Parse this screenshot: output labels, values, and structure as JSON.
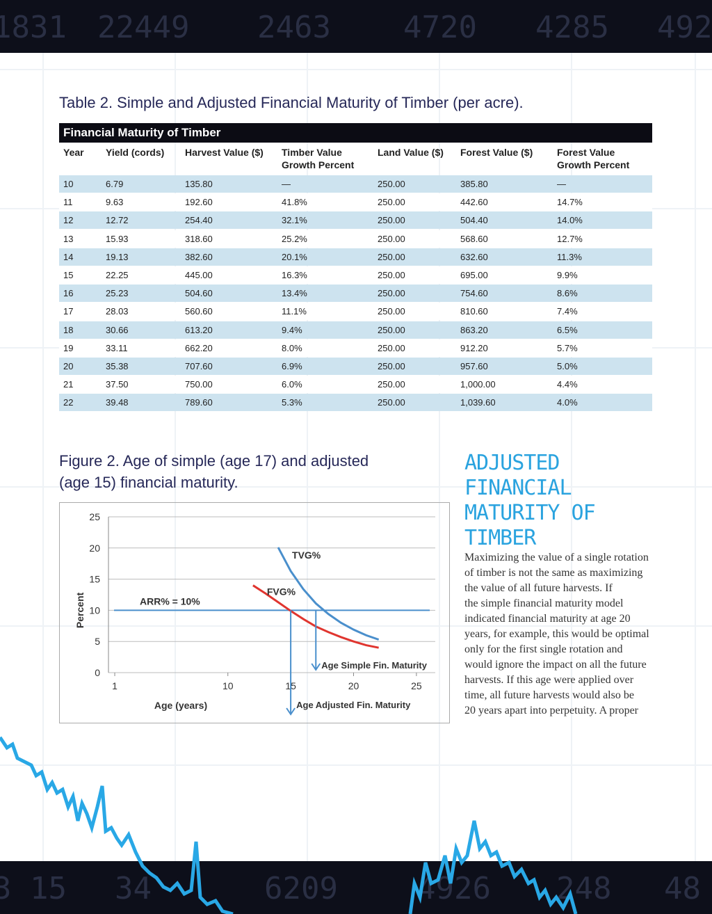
{
  "banner": {
    "top": [
      "1831",
      "22449",
      "2463",
      "4720",
      "4285",
      "492"
    ],
    "bottom": [
      "3 15",
      "34",
      "6209",
      "4926",
      "248",
      "48"
    ]
  },
  "table": {
    "title": "Table 2. Simple and Adjusted Financial Maturity of Timber (per acre).",
    "caption": "Financial Maturity of Timber",
    "columns": [
      "Year",
      "Yield (cords)",
      "Harvest Value ($)",
      "Timber Value Growth Percent",
      "Land Value ($)",
      "Forest Value ($)",
      "Forest Value Growth Percent"
    ],
    "rows": [
      [
        "10",
        "6.79",
        "135.80",
        "—",
        "250.00",
        "385.80",
        "—"
      ],
      [
        "11",
        "9.63",
        "192.60",
        "41.8%",
        "250.00",
        "442.60",
        "14.7%"
      ],
      [
        "12",
        "12.72",
        "254.40",
        "32.1%",
        "250.00",
        "504.40",
        "14.0%"
      ],
      [
        "13",
        "15.93",
        "318.60",
        "25.2%",
        "250.00",
        "568.60",
        "12.7%"
      ],
      [
        "14",
        "19.13",
        "382.60",
        "20.1%",
        "250.00",
        "632.60",
        "11.3%"
      ],
      [
        "15",
        "22.25",
        "445.00",
        "16.3%",
        "250.00",
        "695.00",
        "9.9%"
      ],
      [
        "16",
        "25.23",
        "504.60",
        "13.4%",
        "250.00",
        "754.60",
        "8.6%"
      ],
      [
        "17",
        "28.03",
        "560.60",
        "11.1%",
        "250.00",
        "810.60",
        "7.4%"
      ],
      [
        "18",
        "30.66",
        "613.20",
        "9.4%",
        "250.00",
        "863.20",
        "6.5%"
      ],
      [
        "19",
        "33.11",
        "662.20",
        "8.0%",
        "250.00",
        "912.20",
        "5.7%"
      ],
      [
        "20",
        "35.38",
        "707.60",
        "6.9%",
        "250.00",
        "957.60",
        "5.0%"
      ],
      [
        "21",
        "37.50",
        "750.00",
        "6.0%",
        "250.00",
        "1,000.00",
        "4.4%"
      ],
      [
        "22",
        "39.48",
        "789.60",
        "5.3%",
        "250.00",
        "1,039.60",
        "4.0%"
      ]
    ]
  },
  "figure": {
    "title": "Figure 2. Age of simple (age 17) and adjusted (age 15) financial maturity."
  },
  "chart_data": {
    "type": "line",
    "x_label": "Age (years)",
    "y_label": "Percent",
    "xlim": [
      0.5,
      26.5
    ],
    "xticks": [
      1,
      10,
      15,
      20,
      25
    ],
    "ylim": [
      0,
      25
    ],
    "yticks": [
      0,
      5,
      10,
      15,
      20,
      25
    ],
    "grid": true,
    "series": [
      {
        "name": "TVG%",
        "color": "#4a8fcc",
        "x": [
          14,
          15,
          16,
          17,
          18,
          19,
          20,
          21,
          22
        ],
        "values": [
          20.1,
          16.3,
          13.4,
          11.1,
          9.4,
          8.0,
          6.9,
          6.0,
          5.3
        ]
      },
      {
        "name": "FVG%",
        "color": "#e0352f",
        "x": [
          12,
          13,
          14,
          15,
          16,
          17,
          18,
          19,
          20,
          21,
          22
        ],
        "values": [
          14.0,
          12.7,
          11.3,
          9.9,
          8.6,
          7.4,
          6.5,
          5.7,
          5.0,
          4.4,
          4.0
        ]
      }
    ],
    "reference_line": {
      "value": 10,
      "label": "ARR% = 10%",
      "color": "#4a8fcc"
    },
    "annotations": [
      {
        "text": "Age Simple Fin. Maturity",
        "x": 17
      },
      {
        "text": "Age Adjusted Fin. Maturity",
        "x": 15
      }
    ]
  },
  "article": {
    "heading": "ADJUSTED FINANCIAL MATURITY OF TIMBER",
    "lines": [
      "Maximizing the value of a single rotation",
      "of timber is not the same as maximizing",
      "the value of all future harvests. If",
      "the simple financial maturity model",
      "indicated financial maturity at age 20",
      "years, for example, this would be optimal",
      "only for the first single rotation and",
      "would ignore the impact on all the future",
      "harvests. If this age were applied over",
      "time, all future harvests would also be",
      "20 years apart into perpetuity. A proper"
    ]
  }
}
